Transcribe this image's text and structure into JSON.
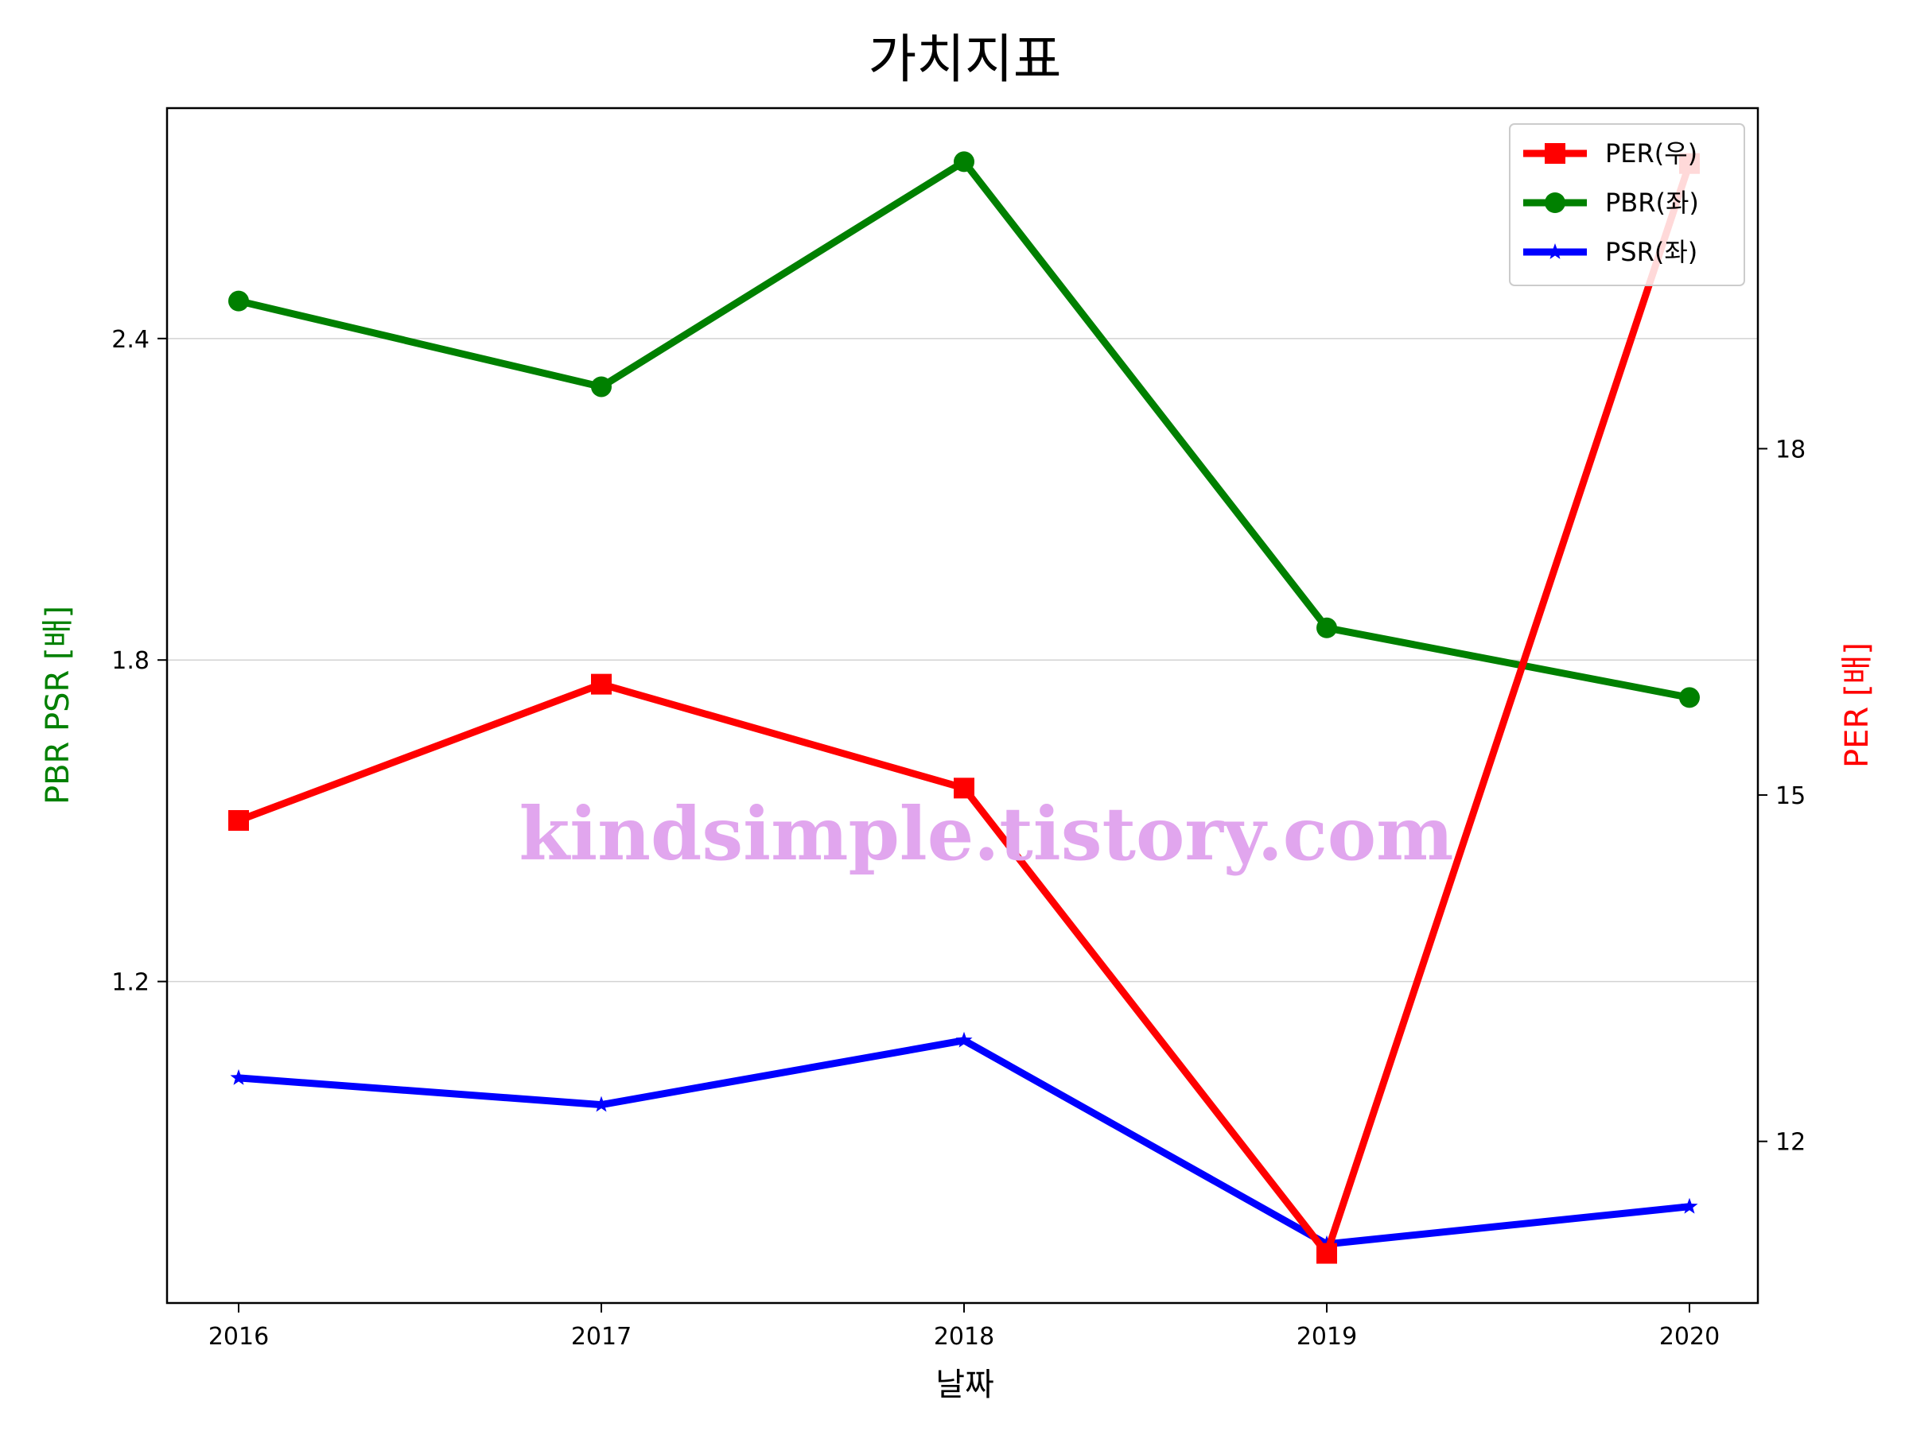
{
  "chart_data": {
    "type": "line",
    "title": "가치지표",
    "xlabel": "날짜",
    "ylabel_left": "PBR PSR [배]",
    "ylabel_right": "PER [배]",
    "categories": [
      "2016",
      "2017",
      "2018",
      "2019",
      "2020"
    ],
    "ylim_left": [
      0.6,
      2.83
    ],
    "ylim_right": [
      10.6,
      20.95
    ],
    "yticks_left": [
      "1.2",
      "1.8",
      "2.4"
    ],
    "yticks_right": [
      "12",
      "15",
      "18"
    ],
    "grid": "horizontal (left axis)",
    "legend_position": "top-right",
    "series": [
      {
        "name": "PER(우)",
        "axis": "right",
        "color": "#ff0000",
        "marker": "square",
        "values": [
          14.78,
          15.96,
          15.06,
          11.03,
          20.47
        ]
      },
      {
        "name": "PBR(좌)",
        "axis": "left",
        "color": "#008000",
        "marker": "circle",
        "values": [
          2.47,
          2.31,
          2.73,
          1.86,
          1.73
        ]
      },
      {
        "name": "PSR(좌)",
        "axis": "left",
        "color": "#0000ff",
        "marker": "star",
        "values": [
          1.02,
          0.97,
          1.09,
          0.71,
          0.78
        ]
      }
    ],
    "watermark": "kindsimple.tistory.com"
  }
}
